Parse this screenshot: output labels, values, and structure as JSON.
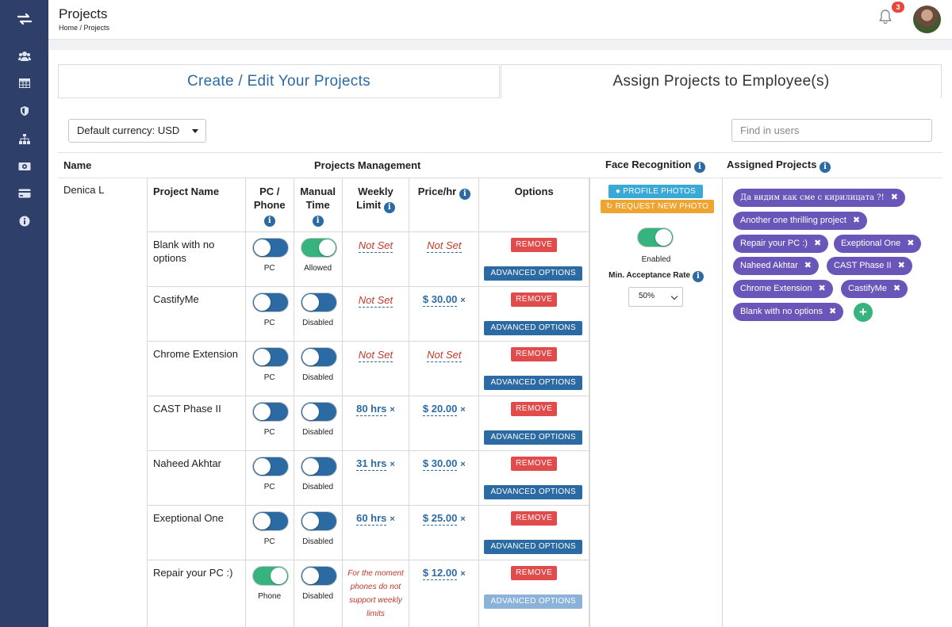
{
  "header": {
    "title": "Projects",
    "breadcrumb": "Home / Projects",
    "notification_count": "3"
  },
  "sidebar": {
    "items": [
      {
        "icon": "transfer-icon"
      },
      {
        "icon": "users-icon"
      },
      {
        "icon": "table-icon"
      },
      {
        "icon": "shield-icon"
      },
      {
        "icon": "sitemap-icon"
      },
      {
        "icon": "money-icon"
      },
      {
        "icon": "credit-card-icon"
      },
      {
        "icon": "info-icon"
      }
    ]
  },
  "tabs": {
    "create": "Create / Edit Your Projects",
    "assign": "Assign Projects to Employee(s)"
  },
  "currency_select": "Default currency: USD",
  "search": {
    "placeholder": "Find in users"
  },
  "columns": {
    "name": "Name",
    "projects_management": "Projects Management",
    "face_recognition": "Face Recognition",
    "assigned_projects": "Assigned Projects"
  },
  "employee": {
    "name": "Denica L"
  },
  "pm_headers": {
    "project_name": "Project Name",
    "pc_phone": "PC / Phone",
    "manual_time": "Manual Time",
    "weekly_limit": "Weekly Limit",
    "price_hr": "Price/hr",
    "options": "Options"
  },
  "projects": [
    {
      "name": "Blank with no options",
      "device": "PC",
      "device_on": false,
      "manual": "Allowed",
      "manual_on": true,
      "weekly": "Not Set",
      "weekly_set": false,
      "price": "Not Set",
      "price_set": false
    },
    {
      "name": "CastifyMe",
      "device": "PC",
      "device_on": false,
      "manual": "Disabled",
      "manual_on": false,
      "weekly": "Not Set",
      "weekly_set": false,
      "price": "$ 30.00",
      "price_set": true
    },
    {
      "name": "Chrome Extension",
      "device": "PC",
      "device_on": false,
      "manual": "Disabled",
      "manual_on": false,
      "weekly": "Not Set",
      "weekly_set": false,
      "price": "Not Set",
      "price_set": false
    },
    {
      "name": "CAST Phase II",
      "device": "PC",
      "device_on": false,
      "manual": "Disabled",
      "manual_on": false,
      "weekly": "80 hrs",
      "weekly_set": true,
      "price": "$ 20.00",
      "price_set": true
    },
    {
      "name": "Naheed Akhtar",
      "device": "PC",
      "device_on": false,
      "manual": "Disabled",
      "manual_on": false,
      "weekly": "31 hrs",
      "weekly_set": true,
      "price": "$ 30.00",
      "price_set": true
    },
    {
      "name": "Exeptional One",
      "device": "PC",
      "device_on": false,
      "manual": "Disabled",
      "manual_on": false,
      "weekly": "60 hrs",
      "weekly_set": true,
      "price": "$ 25.00",
      "price_set": true
    },
    {
      "name": "Repair your PC :)",
      "device": "Phone",
      "device_on": true,
      "manual": "Disabled",
      "manual_on": false,
      "weekly_note": "For the moment phones do not support weekly limits",
      "price": "$ 12.00",
      "price_set": true,
      "adv_faded": true
    }
  ],
  "buttons": {
    "remove": "REMOVE",
    "advanced": "ADVANCED OPTIONS",
    "profile_photos": "PROFILE PHOTOS",
    "request_photo": "REQUEST NEW PHOTO",
    "x_mark": "×"
  },
  "face_recognition": {
    "status": "Enabled",
    "enabled": true,
    "min_label": "Min. Acceptance Rate",
    "rate": "50%"
  },
  "assigned": [
    "Да видим как сме с кирилицата ?!",
    "Another one thrilling project",
    "Repair your PC :)",
    "Exeptional One",
    "Naheed Akhtar",
    "CAST Phase II",
    "Chrome Extension",
    "CastifyMe",
    "Blank with no options"
  ],
  "colors": {
    "sidebar": "#2e3f6a",
    "primary": "#2c6aa3",
    "danger": "#e04b4b",
    "success": "#36b37e",
    "chip": "#6a56b8",
    "warning": "#f0a430",
    "info": "#3aa9d8"
  }
}
